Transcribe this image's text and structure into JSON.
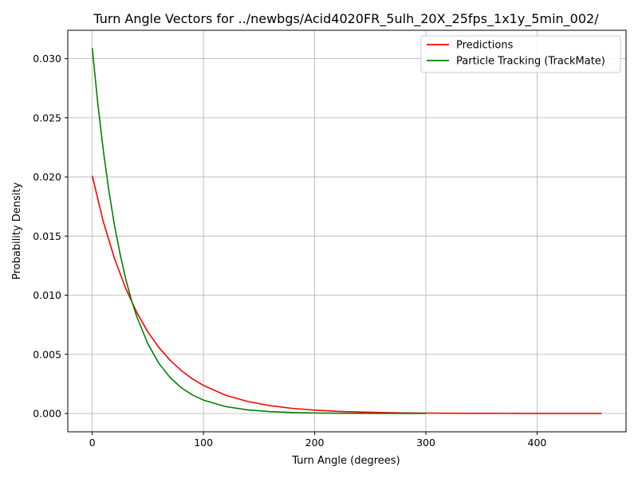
{
  "chart_data": {
    "type": "line",
    "title": "Turn Angle Vectors for ../newbgs/Acid4020FR_5ulh_20X_25fps_1x1y_5min_002/",
    "xlabel": "Turn Angle (degrees)",
    "ylabel": "Probability Density",
    "xlim": [
      -22,
      480
    ],
    "ylim": [
      -0.00155,
      0.0324
    ],
    "xticks": [
      0,
      100,
      200,
      300,
      400
    ],
    "xtick_labels": [
      "0",
      "100",
      "200",
      "300",
      "400"
    ],
    "yticks": [
      0.0,
      0.005,
      0.01,
      0.015,
      0.02,
      0.025,
      0.03
    ],
    "ytick_labels": [
      "0.000",
      "0.005",
      "0.010",
      "0.015",
      "0.020",
      "0.025",
      "0.030"
    ],
    "grid": true,
    "legend_position": "top-right",
    "series": [
      {
        "name": "Predictions",
        "color": "#ff0000",
        "x": [
          0,
          10,
          20,
          30,
          40,
          50,
          60,
          70,
          80,
          90,
          100,
          120,
          140,
          160,
          180,
          200,
          220,
          240,
          260,
          280,
          300,
          320,
          340,
          360,
          380,
          400,
          420,
          440,
          458
        ],
        "y": [
          0.0201,
          0.0162,
          0.0131,
          0.0106,
          0.00855,
          0.0069,
          0.00557,
          0.0045,
          0.00363,
          0.00293,
          0.00237,
          0.00154,
          0.00101,
          0.00066,
          0.00043,
          0.00028,
          0.00018,
          0.00012,
          7.7e-05,
          5e-05,
          3.3e-05,
          2.1e-05,
          1.4e-05,
          9e-06,
          6e-06,
          4e-06,
          2.6e-06,
          1.7e-06,
          1.2e-06
        ]
      },
      {
        "name": "Particle Tracking (TrackMate)",
        "color": "#008000",
        "x": [
          0,
          5,
          10,
          15,
          20,
          25,
          30,
          35,
          40,
          50,
          60,
          70,
          80,
          90,
          100,
          120,
          140,
          160,
          180,
          200,
          220,
          240,
          260,
          280,
          300
        ],
        "y": [
          0.0309,
          0.0262,
          0.0222,
          0.0188,
          0.0159,
          0.0135,
          0.0114,
          0.00967,
          0.0082,
          0.00589,
          0.00423,
          0.00304,
          0.00218,
          0.00157,
          0.00113,
          0.00058,
          0.0003,
          0.000154,
          7.9e-05,
          4.1e-05,
          2.1e-05,
          1.1e-05,
          5.6e-06,
          2.9e-06,
          1.5e-06
        ]
      }
    ]
  }
}
